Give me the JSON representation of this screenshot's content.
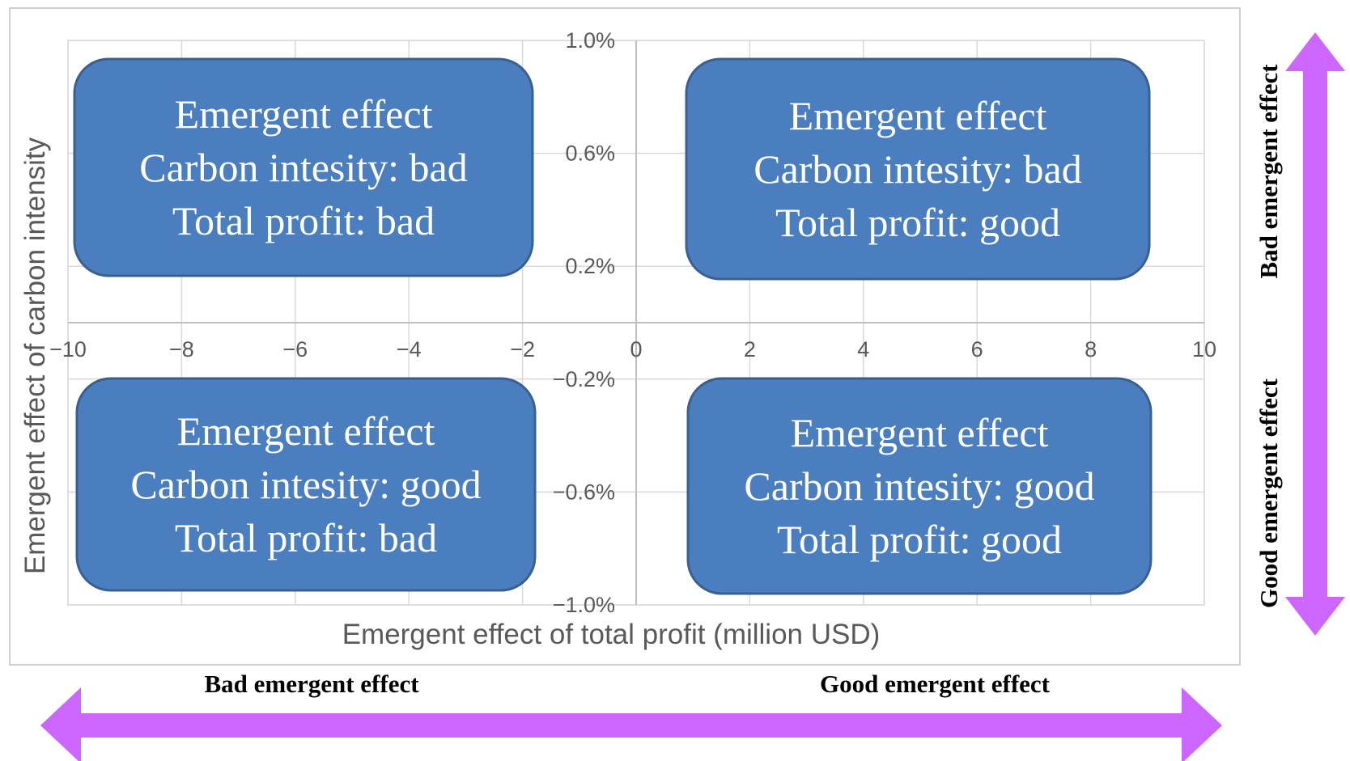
{
  "chart_data": {
    "type": "scatter",
    "title": "",
    "xlabel": "Emergent effect of total profit (million USD)",
    "ylabel": "Emergent effect of carbon intensity",
    "xlim": [
      -10,
      10
    ],
    "ylim": [
      -1.0,
      1.0
    ],
    "x_ticks": [
      -10,
      -8,
      -6,
      -4,
      -2,
      0,
      2,
      4,
      6,
      8,
      10
    ],
    "x_tick_labels": [
      "−10",
      "−8",
      "−6",
      "−4",
      "−2",
      "0",
      "2",
      "4",
      "6",
      "8",
      "10"
    ],
    "y_ticks": [
      1.0,
      0.6,
      0.2,
      -0.2,
      -0.6,
      -1.0
    ],
    "y_tick_labels": [
      "1.0%",
      "0.6%",
      "0.2%",
      "−0.2%",
      "−0.6%",
      "−1.0%"
    ],
    "grid": true,
    "series": [],
    "quadrants": [
      {
        "id": "top-left",
        "position": "upper-left",
        "lines": [
          "Emergent effect",
          "Carbon intesity: bad",
          "Total profit: bad"
        ]
      },
      {
        "id": "top-right",
        "position": "upper-right",
        "lines": [
          "Emergent effect",
          "Carbon intesity: bad",
          "Total profit: good"
        ]
      },
      {
        "id": "bottom-left",
        "position": "lower-left",
        "lines": [
          "Emergent effect",
          "Carbon intesity: good",
          "Total profit: bad"
        ]
      },
      {
        "id": "bottom-right",
        "position": "lower-right",
        "lines": [
          "Emergent effect",
          "Carbon intesity: good",
          "Total profit: good"
        ]
      }
    ]
  },
  "annotations": {
    "horizontal": {
      "left_label": "Bad emergent effect",
      "right_label": "Good emergent effect"
    },
    "vertical": {
      "top_label": "Bad emergent effect",
      "bottom_label": "Good emergent effect"
    }
  },
  "colors": {
    "box_fill": "#4a7ebf",
    "box_stroke": "#3a6090",
    "arrow": "#cc66ff",
    "grid": "#d9d9d9",
    "frame": "#d0d0d0",
    "axis_text": "#595959"
  }
}
